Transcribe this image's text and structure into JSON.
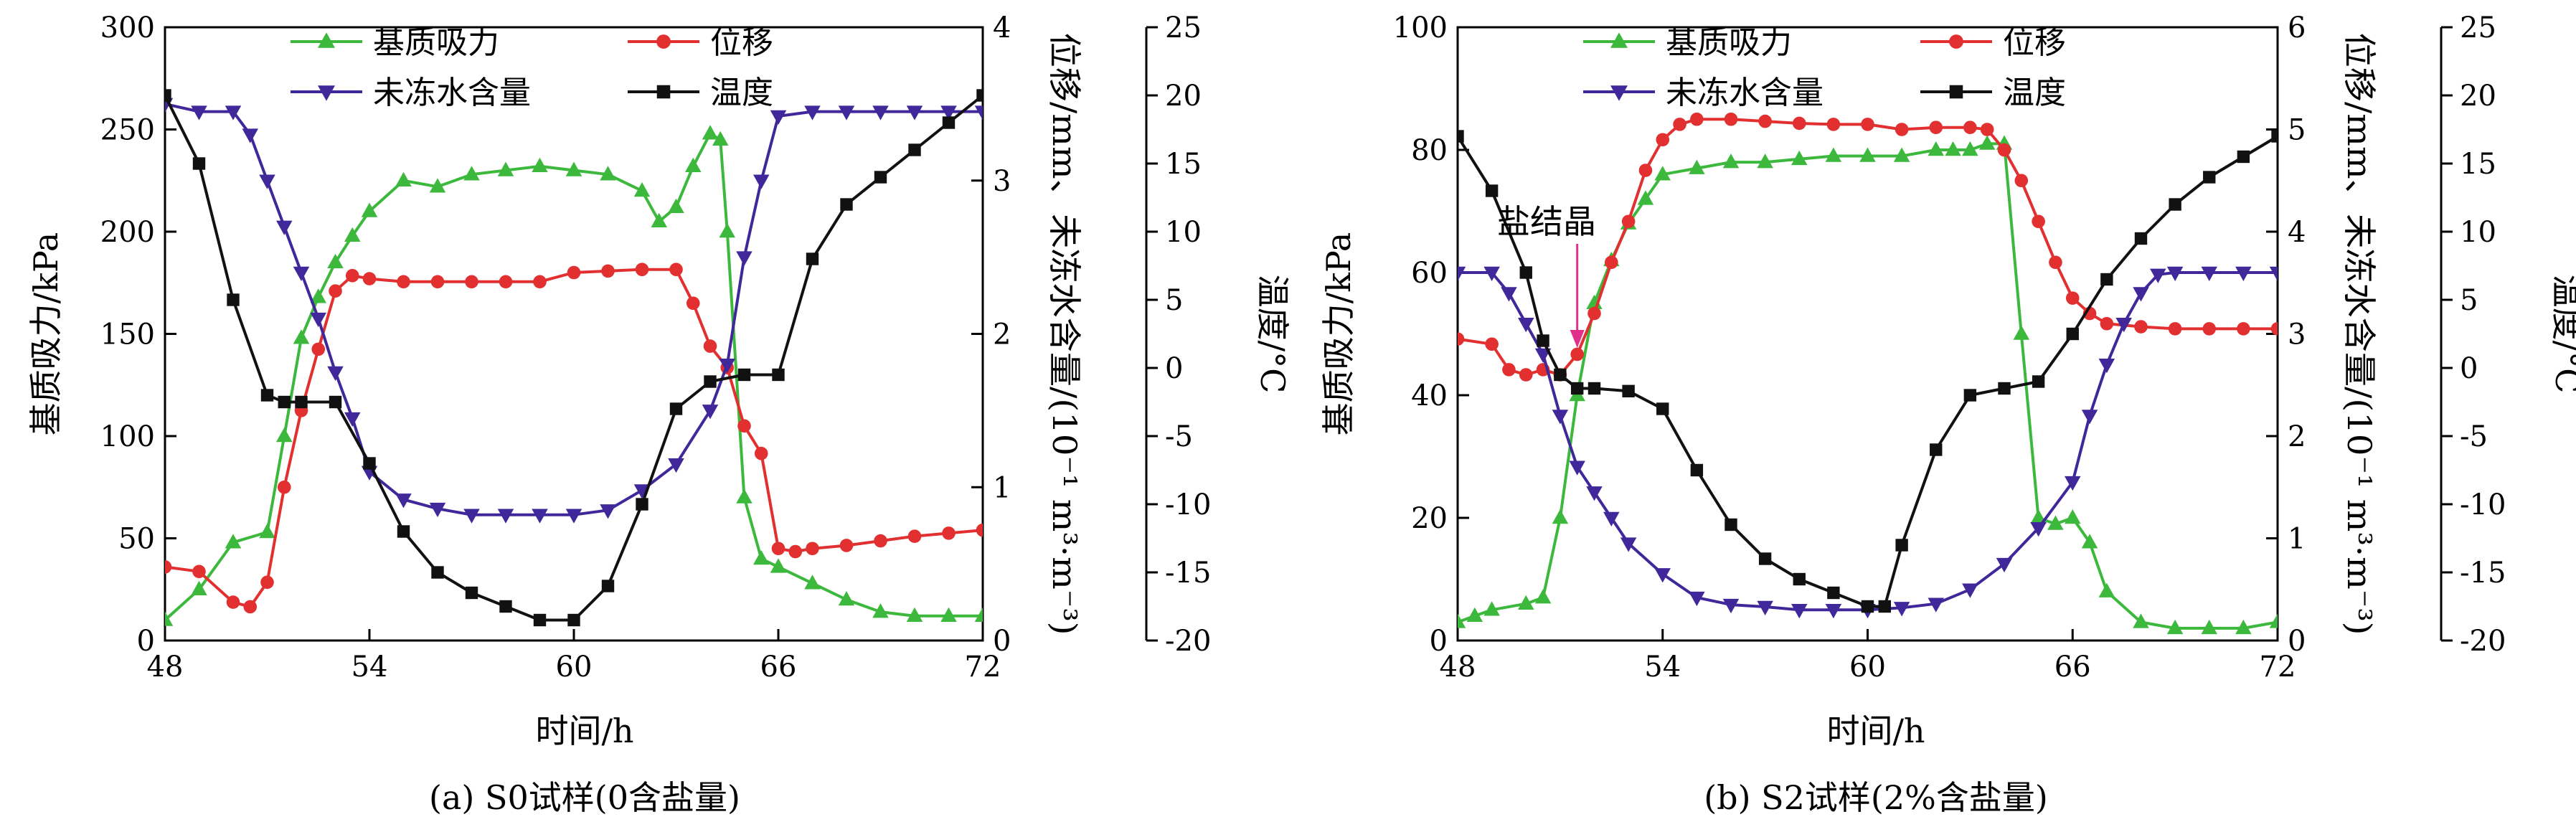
{
  "chart_data": [
    {
      "type": "line",
      "caption": "(a) S0试样(0含盐量)",
      "xlabel": "时间/h",
      "ylabel_left": "基质吸力/kPa",
      "ylabel_right1": "位移/mm、未冻水含量/(10⁻¹ m³·m⁻³)",
      "ylabel_right2": "温度/°C",
      "xlim": [
        48,
        72
      ],
      "xticks": [
        "48",
        "54",
        "60",
        "66",
        "72"
      ],
      "ylim_left": [
        0,
        300
      ],
      "yticks_left": [
        "0",
        "50",
        "100",
        "150",
        "200",
        "250",
        "300"
      ],
      "ylim_right1": [
        0,
        4
      ],
      "yticks_right1": [
        "0",
        "1",
        "2",
        "3",
        "4"
      ],
      "ylim_right2": [
        -20,
        25
      ],
      "yticks_right2": [
        "-20",
        "-15",
        "-10",
        "-5",
        "0",
        "5",
        "10",
        "15",
        "20",
        "25"
      ],
      "legend": [
        {
          "name": "基质吸力",
          "color": "#3cb93c",
          "marker": "triangle-up"
        },
        {
          "name": "位移",
          "color": "#e23030",
          "marker": "circle"
        },
        {
          "name": "未冻水含量",
          "color": "#40289a",
          "marker": "triangle-down"
        },
        {
          "name": "温度",
          "color": "#111111",
          "marker": "square"
        }
      ],
      "annotation": "",
      "series": [
        {
          "key": "suction",
          "axis": "left",
          "color": "#3cb93c",
          "marker": "triangle-up",
          "x": [
            48,
            49,
            50,
            51,
            51.5,
            52,
            52.5,
            53,
            53.5,
            54,
            55,
            56,
            57,
            58,
            59,
            60,
            61,
            62,
            62.5,
            63,
            63.5,
            64,
            64.3,
            64.5,
            65,
            65.5,
            66,
            67,
            68,
            69,
            70,
            71,
            72
          ],
          "y": [
            10,
            25,
            48,
            53,
            100,
            148,
            168,
            185,
            198,
            210,
            225,
            222,
            228,
            230,
            232,
            230,
            228,
            220,
            205,
            212,
            232,
            248,
            245,
            200,
            70,
            40,
            36,
            28,
            20,
            14,
            12,
            12,
            12
          ]
        },
        {
          "key": "displacement",
          "axis": "right1",
          "color": "#e23030",
          "marker": "circle",
          "x": [
            48,
            49,
            50,
            50.5,
            51,
            51.5,
            52,
            52.5,
            53,
            53.5,
            54,
            55,
            56,
            57,
            58,
            59,
            60,
            61,
            62,
            63,
            63.5,
            64,
            64.5,
            65,
            65.5,
            66,
            66.5,
            67,
            68,
            69,
            70,
            71,
            72
          ],
          "y": [
            0.48,
            0.45,
            0.25,
            0.22,
            0.38,
            1.0,
            1.5,
            1.9,
            2.28,
            2.38,
            2.36,
            2.34,
            2.34,
            2.34,
            2.34,
            2.34,
            2.4,
            2.41,
            2.42,
            2.42,
            2.2,
            1.92,
            1.78,
            1.4,
            1.22,
            0.6,
            0.58,
            0.6,
            0.62,
            0.65,
            0.68,
            0.7,
            0.72
          ]
        },
        {
          "key": "unfrozen_water",
          "axis": "right1",
          "color": "#40289a",
          "marker": "triangle-down",
          "x": [
            48,
            49,
            50,
            50.5,
            51,
            51.5,
            52,
            52.5,
            53,
            53.5,
            54,
            55,
            56,
            57,
            58,
            59,
            60,
            61,
            62,
            63,
            64,
            64.5,
            65,
            65.5,
            66,
            67,
            68,
            69,
            70,
            71,
            72
          ],
          "y": [
            3.5,
            3.45,
            3.45,
            3.3,
            3.0,
            2.7,
            2.4,
            2.1,
            1.75,
            1.45,
            1.1,
            0.92,
            0.86,
            0.82,
            0.82,
            0.82,
            0.82,
            0.85,
            0.98,
            1.15,
            1.5,
            1.8,
            2.5,
            3.0,
            3.42,
            3.45,
            3.45,
            3.45,
            3.45,
            3.45,
            3.45
          ]
        },
        {
          "key": "temperature",
          "axis": "right2",
          "color": "#111111",
          "marker": "square",
          "x": [
            48,
            49,
            50,
            51,
            51.5,
            52,
            53,
            54,
            55,
            56,
            57,
            58,
            59,
            60,
            61,
            62,
            63,
            64,
            65,
            66,
            67,
            68,
            69,
            70,
            71,
            72
          ],
          "y": [
            20,
            15,
            5,
            -2,
            -2.5,
            -2.5,
            -2.5,
            -7,
            -12,
            -15,
            -16.5,
            -17.5,
            -18.5,
            -18.5,
            -16,
            -10,
            -3,
            -1,
            -0.5,
            -0.5,
            8,
            12,
            14,
            16,
            18,
            20
          ]
        }
      ]
    },
    {
      "type": "line",
      "caption": "(b) S2试样(2%含盐量)",
      "xlabel": "时间/h",
      "ylabel_left": "基质吸力/kPa",
      "ylabel_right1": "位移/mm、未冻水含量/(10⁻¹ m³·m⁻³)",
      "ylabel_right2": "温度/°C",
      "xlim": [
        48,
        72
      ],
      "xticks": [
        "48",
        "54",
        "60",
        "66",
        "72"
      ],
      "ylim_left": [
        0,
        100
      ],
      "yticks_left": [
        "0",
        "20",
        "40",
        "60",
        "80",
        "100"
      ],
      "ylim_right1": [
        0,
        6
      ],
      "yticks_right1": [
        "0",
        "1",
        "2",
        "3",
        "4",
        "5",
        "6"
      ],
      "ylim_right2": [
        -20,
        25
      ],
      "yticks_right2": [
        "-20",
        "-15",
        "-10",
        "-5",
        "0",
        "5",
        "10",
        "15",
        "20",
        "25"
      ],
      "legend": [
        {
          "name": "基质吸力",
          "color": "#3cb93c",
          "marker": "triangle-up"
        },
        {
          "name": "位移",
          "color": "#e23030",
          "marker": "circle"
        },
        {
          "name": "未冻水含量",
          "color": "#40289a",
          "marker": "triangle-down"
        },
        {
          "name": "温度",
          "color": "#111111",
          "marker": "square"
        }
      ],
      "annotation": "盐结晶",
      "series": [
        {
          "key": "suction",
          "axis": "left",
          "color": "#3cb93c",
          "marker": "triangle-up",
          "x": [
            48,
            48.5,
            49,
            50,
            50.5,
            51,
            51.5,
            52,
            52.5,
            53,
            53.5,
            54,
            55,
            56,
            57,
            58,
            59,
            60,
            61,
            62,
            62.5,
            63,
            63.5,
            64,
            64.5,
            65,
            65.5,
            66,
            66.5,
            67,
            68,
            69,
            70,
            71,
            72
          ],
          "y": [
            3,
            4,
            5,
            6,
            7,
            20,
            40,
            55,
            62,
            68,
            72,
            76,
            77,
            78,
            78,
            78.5,
            79,
            79,
            79,
            80,
            80,
            80,
            81,
            81,
            50,
            20,
            19,
            20,
            16,
            8,
            3,
            2,
            2,
            2,
            3
          ]
        },
        {
          "key": "displacement",
          "axis": "right1",
          "color": "#e23030",
          "marker": "circle",
          "x": [
            48,
            49,
            49.5,
            50,
            50.5,
            51,
            51.5,
            52,
            52.5,
            53,
            53.5,
            54,
            54.5,
            55,
            56,
            57,
            58,
            59,
            60,
            61,
            62,
            63,
            63.5,
            64,
            64.5,
            65,
            65.5,
            66,
            66.5,
            67,
            68,
            69,
            70,
            71,
            72
          ],
          "y": [
            2.95,
            2.9,
            2.65,
            2.6,
            2.65,
            2.6,
            2.8,
            3.2,
            3.7,
            4.1,
            4.6,
            4.9,
            5.05,
            5.1,
            5.1,
            5.08,
            5.06,
            5.05,
            5.05,
            5.0,
            5.02,
            5.02,
            5.0,
            4.8,
            4.5,
            4.1,
            3.7,
            3.35,
            3.2,
            3.1,
            3.07,
            3.05,
            3.05,
            3.05,
            3.05
          ]
        },
        {
          "key": "unfrozen_water",
          "axis": "right1",
          "color": "#40289a",
          "marker": "triangle-down",
          "x": [
            48,
            49,
            49.5,
            50,
            50.5,
            51,
            51.5,
            52,
            52.5,
            53,
            54,
            55,
            56,
            57,
            58,
            59,
            60,
            61,
            62,
            63,
            64,
            65,
            66,
            66.5,
            67,
            67.5,
            68,
            68.5,
            69,
            70,
            71,
            72
          ],
          "y": [
            3.6,
            3.6,
            3.4,
            3.1,
            2.8,
            2.2,
            1.7,
            1.45,
            1.2,
            0.95,
            0.65,
            0.42,
            0.35,
            0.33,
            0.3,
            0.3,
            0.3,
            0.32,
            0.36,
            0.5,
            0.75,
            1.1,
            1.55,
            2.2,
            2.7,
            3.1,
            3.4,
            3.58,
            3.6,
            3.6,
            3.6,
            3.6
          ]
        },
        {
          "key": "temperature",
          "axis": "right2",
          "color": "#111111",
          "marker": "square",
          "x": [
            48,
            49,
            50,
            50.5,
            51,
            51.5,
            52,
            53,
            54,
            55,
            56,
            57,
            58,
            59,
            60,
            60.5,
            61,
            62,
            63,
            64,
            65,
            66,
            67,
            68,
            69,
            70,
            71,
            72
          ],
          "y": [
            17,
            13,
            7,
            2,
            -0.5,
            -1.5,
            -1.5,
            -1.7,
            -3,
            -7.5,
            -11.5,
            -14,
            -15.5,
            -16.5,
            -17.5,
            -17.5,
            -13,
            -6,
            -2,
            -1.5,
            -1,
            2.5,
            6.5,
            9.5,
            12,
            14,
            15.5,
            17
          ]
        }
      ]
    }
  ]
}
